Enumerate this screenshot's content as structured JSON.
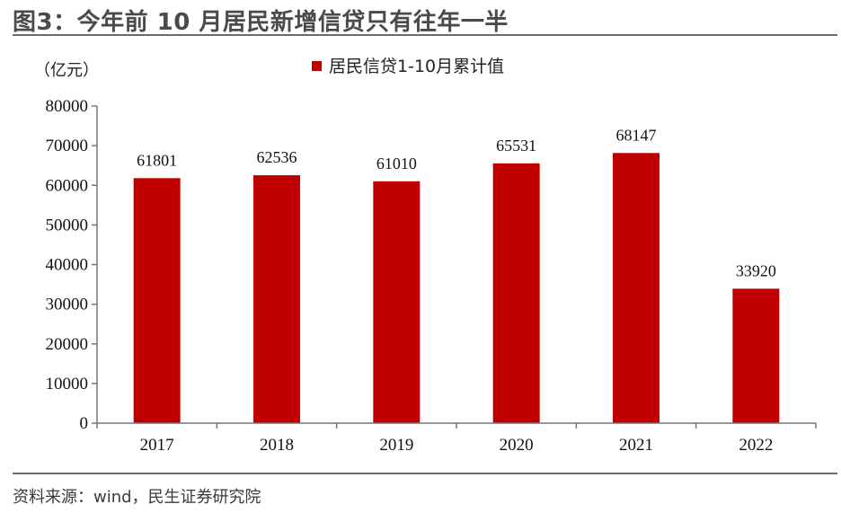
{
  "header": {
    "title": "图3：今年前 10 月居民新增信贷只有往年一半"
  },
  "footer": {
    "source": "资料来源：wind，民生证券研究院"
  },
  "colors": {
    "bar": "#c00000",
    "axis": "#777777",
    "rule": "#6b6b6b"
  },
  "chart_data": {
    "type": "bar",
    "title": "",
    "xlabel": "",
    "ylabel": "",
    "unit_label": "（亿元）",
    "categories": [
      "2017",
      "2018",
      "2019",
      "2020",
      "2021",
      "2022"
    ],
    "series": [
      {
        "name": "居民信贷1-10月累计值",
        "values": [
          61801,
          62536,
          61010,
          65531,
          68147,
          33920
        ]
      }
    ],
    "value_labels": [
      "61801",
      "62536",
      "61010",
      "65531",
      "68147",
      "33920"
    ],
    "ylim": [
      0,
      80000
    ],
    "yticks": [
      "0",
      "10000",
      "20000",
      "30000",
      "40000",
      "50000",
      "60000",
      "70000",
      "80000"
    ],
    "grid": false,
    "legend_position": "top"
  }
}
